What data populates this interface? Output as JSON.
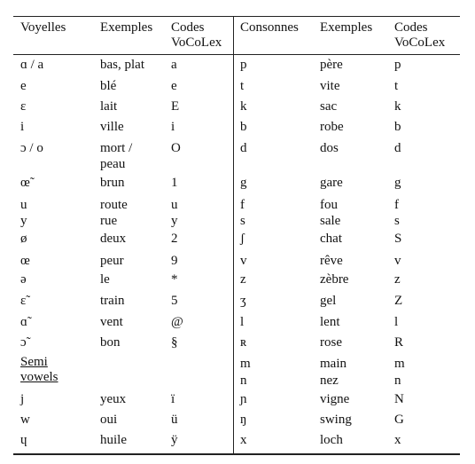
{
  "headers": {
    "voyelles": "Voyelles",
    "exemples_v": "Exemples",
    "codes_v": [
      "Codes",
      "VoCoLex"
    ],
    "consonnes": "Consonnes",
    "exemples_c": "Exemples",
    "codes_c": [
      "Codes",
      "VoCoLex"
    ]
  },
  "vowels": [
    {
      "sym": "ɑ / a",
      "ex": "bas, plat",
      "code": "a"
    },
    {
      "sym": "e",
      "ex": "blé",
      "code": "e"
    },
    {
      "sym": "ɛ",
      "ex": "lait",
      "code": "E"
    },
    {
      "sym": "i",
      "ex": "ville",
      "code": "i"
    },
    {
      "sym": "ɔ / o",
      "ex": "mort /",
      "ex2": "peau",
      "code": "O"
    },
    {
      "sym": "œ̃",
      "ex": "brun",
      "code": "1"
    },
    {
      "sym": "u",
      "ex": "route",
      "code": "u"
    },
    {
      "sym": "y",
      "ex": "rue",
      "code": "y"
    },
    {
      "sym": "ø",
      "ex": "deux",
      "code": "2"
    },
    {
      "sym": "œ",
      "ex": "peur",
      "code": "9"
    },
    {
      "sym": "ə",
      "ex": "le",
      "code": "*"
    },
    {
      "sym": "ɛ̃",
      "ex": "train",
      "code": "5"
    },
    {
      "sym": "ɑ̃",
      "ex": "vent",
      "code": "@"
    },
    {
      "sym": "ɔ̃",
      "ex": "bon",
      "code": "§"
    }
  ],
  "semi_label": [
    "Semi",
    "vowels"
  ],
  "semivowels": [
    {
      "sym": "j",
      "ex": "yeux",
      "code": "ï"
    },
    {
      "sym": "w",
      "ex": "oui",
      "code": "ü"
    },
    {
      "sym": "ɥ",
      "ex": "huile",
      "code": "ÿ"
    }
  ],
  "consonants": [
    {
      "sym": "p",
      "ex": "père",
      "code": "p"
    },
    {
      "sym": "t",
      "ex": "vite",
      "code": "t"
    },
    {
      "sym": "k",
      "ex": "sac",
      "code": "k"
    },
    {
      "sym": "b",
      "ex": "robe",
      "code": "b"
    },
    {
      "sym": "d",
      "ex": "dos",
      "code": "d"
    },
    {
      "sym": "g",
      "ex": "gare",
      "code": "g"
    },
    {
      "sym": "f",
      "ex": "fou",
      "code": "f"
    },
    {
      "sym": "s",
      "ex": "sale",
      "code": "s"
    },
    {
      "sym": "ʃ",
      "ex": "chat",
      "code": "S"
    },
    {
      "sym": "v",
      "ex": "rêve",
      "code": "v"
    },
    {
      "sym": "z",
      "ex": "zèbre",
      "code": "z"
    },
    {
      "sym": "ʒ",
      "ex": "gel",
      "code": "Z"
    },
    {
      "sym": "l",
      "ex": "lent",
      "code": "l"
    },
    {
      "sym": "ʀ",
      "ex": "rose",
      "code": "R"
    },
    {
      "sym": "m",
      "ex": "main",
      "code": "m"
    },
    {
      "sym": "n",
      "ex": "nez",
      "code": "n"
    },
    {
      "sym": "ɲ",
      "ex": "vigne",
      "code": "N"
    },
    {
      "sym": "ŋ",
      "ex": "swing",
      "code": "G"
    },
    {
      "sym": "x",
      "ex": "loch",
      "code": "x"
    }
  ]
}
